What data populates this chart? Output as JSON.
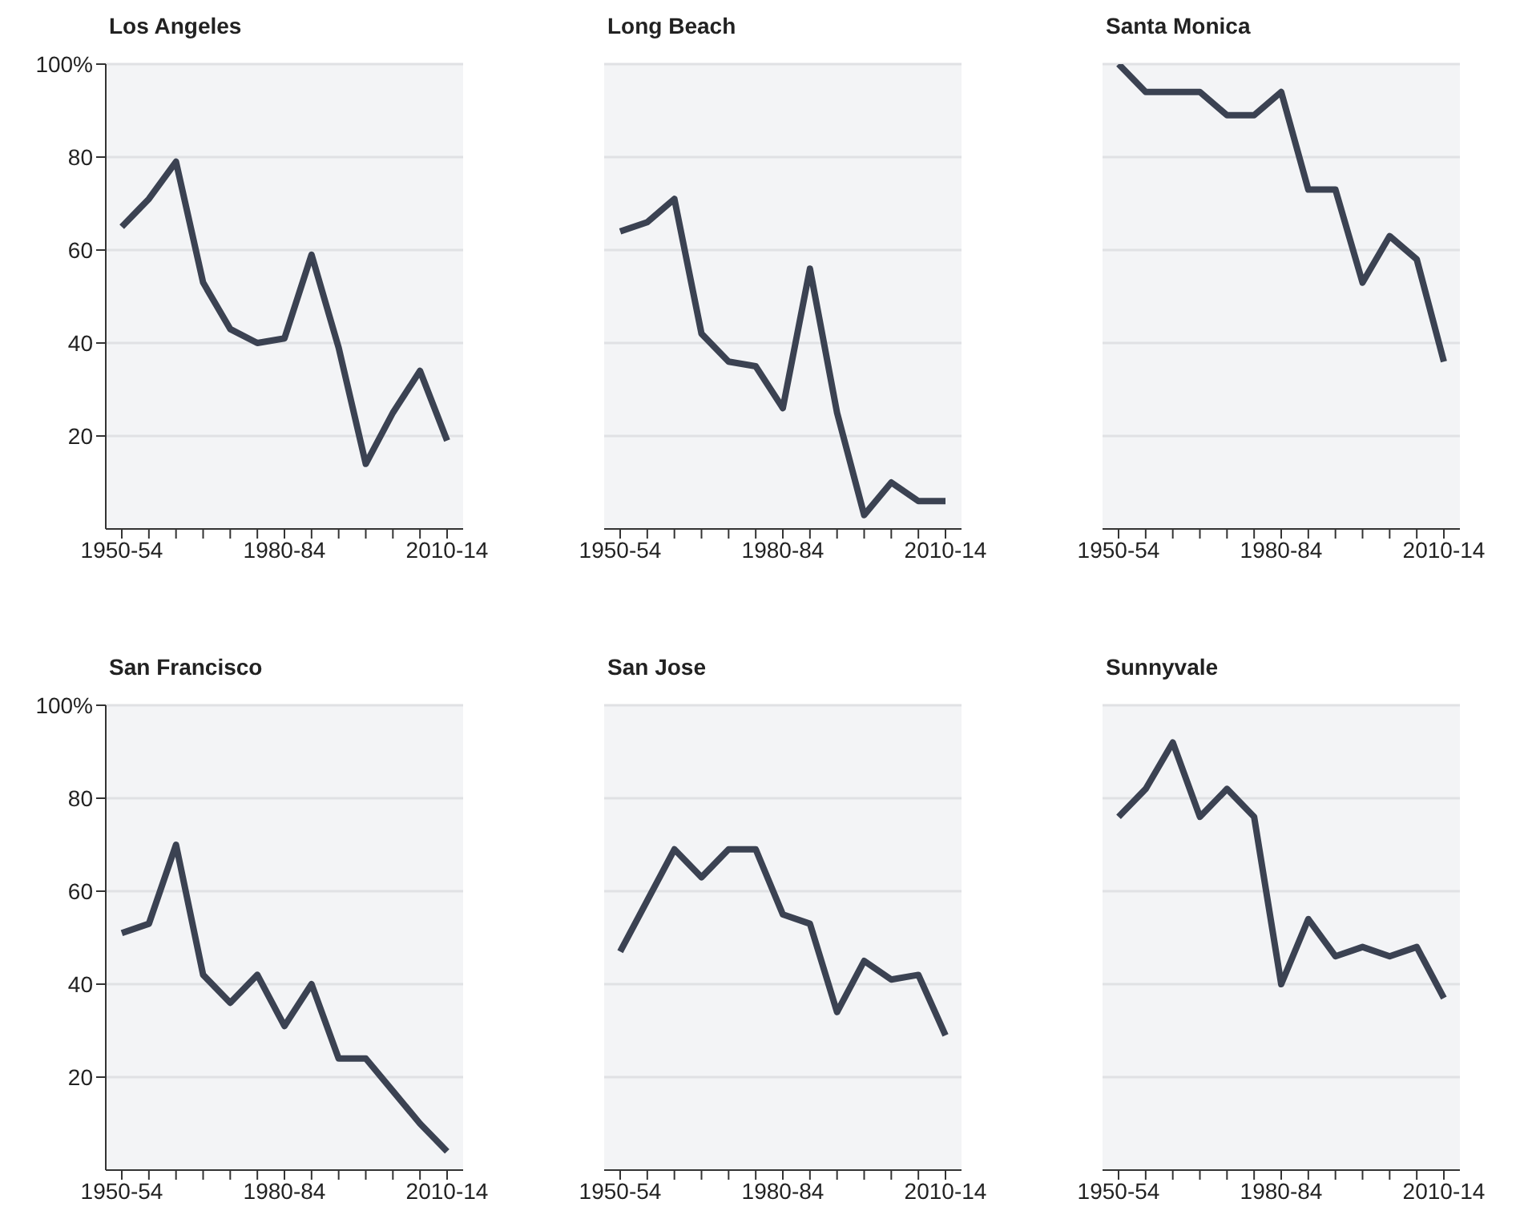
{
  "chart_data": [
    {
      "type": "line",
      "title": "Los Angeles",
      "categories": [
        "1950-54",
        null,
        null,
        null,
        null,
        null,
        "1980-84",
        null,
        null,
        null,
        null,
        null,
        "2010-14"
      ],
      "series": [
        {
          "color": "#3b4252",
          "values": [
            65,
            71,
            79,
            53,
            43,
            40,
            41,
            59,
            39,
            14,
            25,
            34,
            19
          ]
        }
      ],
      "ylim": [
        0,
        100
      ],
      "yticks": [
        20,
        40,
        60,
        80,
        {
          "value": 100,
          "label": "100%"
        }
      ],
      "grid": "y",
      "marker": "none"
    },
    {
      "type": "line",
      "title": "Long Beach",
      "categories": [
        "1950-54",
        null,
        null,
        null,
        null,
        null,
        "1980-84",
        null,
        null,
        null,
        null,
        null,
        "2010-14"
      ],
      "series": [
        {
          "color": "#3b4252",
          "values": [
            64,
            66,
            71,
            42,
            36,
            35,
            26,
            56,
            25,
            3,
            10,
            6,
            6
          ]
        }
      ],
      "ylim": [
        0,
        100
      ],
      "yticks": [
        20,
        40,
        60,
        80,
        100
      ],
      "grid": "y",
      "marker": "none",
      "tick_labels": "x"
    },
    {
      "type": "line",
      "title": "Santa Monica",
      "categories": [
        "1950-54",
        null,
        null,
        null,
        null,
        null,
        "1980-84",
        null,
        null,
        null,
        null,
        null,
        "2010-14"
      ],
      "series": [
        {
          "color": "#3b4252",
          "values": [
            100,
            94,
            94,
            94,
            89,
            89,
            94,
            73,
            73,
            53,
            63,
            58,
            36
          ]
        }
      ],
      "ylim": [
        0,
        100
      ],
      "yticks": [
        20,
        40,
        60,
        80,
        100
      ],
      "grid": "y",
      "marker": "none",
      "tick_labels": "x"
    },
    {
      "type": "line",
      "title": "San Francisco",
      "categories": [
        "1950-54",
        null,
        null,
        null,
        null,
        null,
        "1980-84",
        null,
        null,
        null,
        null,
        null,
        "2010-14"
      ],
      "series": [
        {
          "color": "#3b4252",
          "values": [
            51,
            53,
            70,
            42,
            36,
            42,
            31,
            40,
            24,
            24,
            17,
            10,
            4
          ]
        }
      ],
      "ylim": [
        0,
        100
      ],
      "yticks": [
        20,
        40,
        60,
        80,
        {
          "value": 100,
          "label": "100%"
        }
      ],
      "grid": "y",
      "marker": "none"
    },
    {
      "type": "line",
      "title": "San Jose",
      "categories": [
        "1950-54",
        null,
        null,
        null,
        null,
        null,
        "1980-84",
        null,
        null,
        null,
        null,
        null,
        "2010-14"
      ],
      "series": [
        {
          "color": "#3b4252",
          "values": [
            47,
            58,
            69,
            63,
            69,
            69,
            55,
            53,
            34,
            45,
            41,
            42,
            29
          ]
        }
      ],
      "ylim": [
        0,
        100
      ],
      "yticks": [
        20,
        40,
        60,
        80,
        100
      ],
      "grid": "y",
      "marker": "none",
      "tick_labels": "x"
    },
    {
      "type": "line",
      "title": "Sunnyvale",
      "categories": [
        "1950-54",
        null,
        null,
        null,
        null,
        null,
        "1980-84",
        null,
        null,
        null,
        null,
        null,
        "2010-14"
      ],
      "series": [
        {
          "color": "#3b4252",
          "values": [
            76,
            82,
            92,
            76,
            82,
            76,
            40,
            54,
            46,
            48,
            46,
            48,
            37
          ]
        }
      ],
      "ylim": [
        0,
        100
      ],
      "yticks": [
        20,
        40,
        60,
        80,
        100
      ],
      "grid": "y",
      "marker": "none",
      "tick_labels": "x"
    }
  ]
}
